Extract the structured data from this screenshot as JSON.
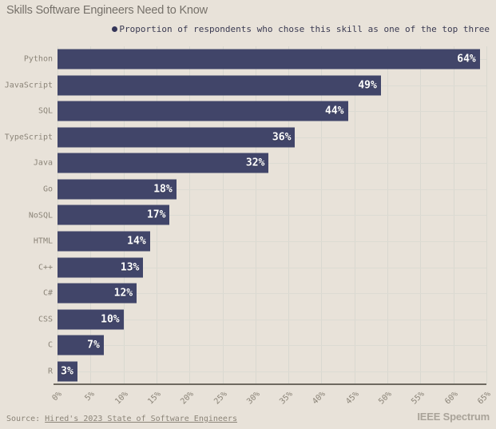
{
  "header": {
    "title": "Skills Software Engineers Need to Know"
  },
  "legend": {
    "label": "Proportion of respondents who chose this skill as one of the top three"
  },
  "chart_data": {
    "type": "bar",
    "orientation": "horizontal",
    "title": "Skills Software Engineers Need to Know",
    "legend": [
      "Proportion of respondents who chose this skill as one of the top three"
    ],
    "legend_position": "top",
    "categories": [
      "Python",
      "JavaScript",
      "SQL",
      "TypeScript",
      "Java",
      "Go",
      "NoSQL",
      "HTML",
      "C++",
      "C#",
      "CSS",
      "C",
      "R"
    ],
    "values": [
      64,
      49,
      44,
      36,
      32,
      18,
      17,
      14,
      13,
      12,
      10,
      7,
      3
    ],
    "value_suffix": "%",
    "xlabel": "",
    "ylabel": "",
    "xlim": [
      0,
      65
    ],
    "x_tick_step": 5,
    "x_tick_labels": [
      "0%",
      "5%",
      "10%",
      "15%",
      "20%",
      "25%",
      "30%",
      "35%",
      "40%",
      "45%",
      "50%",
      "55%",
      "60%",
      "65%"
    ],
    "grid": true
  },
  "footer": {
    "source_prefix": "Source:",
    "source_link": "Hired's 2023 State of Software Engineers",
    "brand": "IEEE Spectrum"
  },
  "colors": {
    "background": "#e8e2d9",
    "bar": "#414569",
    "legend_dot": "#343559",
    "grid": "#d9d8d0",
    "axis": "#6e6960",
    "muted_text": "#8b8478",
    "title_text": "#76716a",
    "legend_text": "#3a3a52",
    "value_text": "#ffffff",
    "brand_text": "#a9a399"
  }
}
